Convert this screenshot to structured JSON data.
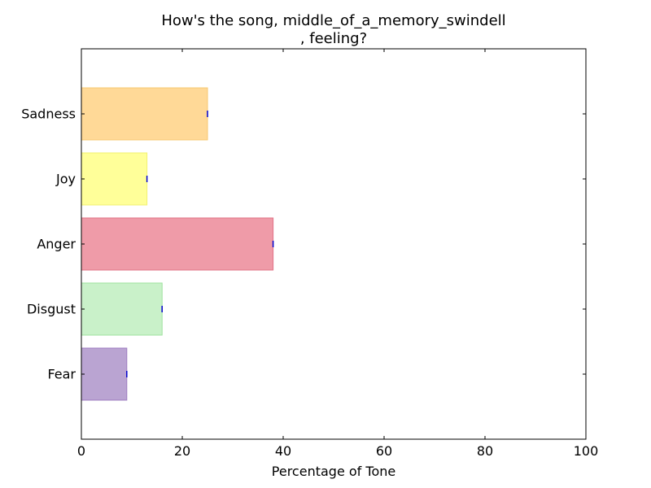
{
  "chart_data": {
    "type": "bar",
    "orientation": "horizontal",
    "title_line1": "How's the song, middle_of_a_memory_swindell",
    "title_line2": ", feeling?",
    "xlabel": "Percentage of Tone",
    "ylabel": "",
    "xlim": [
      0,
      100
    ],
    "x_ticks": [
      0,
      20,
      40,
      60,
      80,
      100
    ],
    "grid": false,
    "categories": [
      "Fear",
      "Disgust",
      "Anger",
      "Joy",
      "Sadness"
    ],
    "values": [
      9,
      16,
      38,
      13,
      25
    ],
    "bar_colors": [
      "#BAA4D2",
      "#C9F1C9",
      "#EF9BA8",
      "#FFFF99",
      "#FFD997"
    ],
    "bar_edge_colors": [
      "#9E7CC0",
      "#9EE29E",
      "#E07386",
      "#F2F270",
      "#F7C870"
    ],
    "error_marker_color": "#0000CC"
  }
}
